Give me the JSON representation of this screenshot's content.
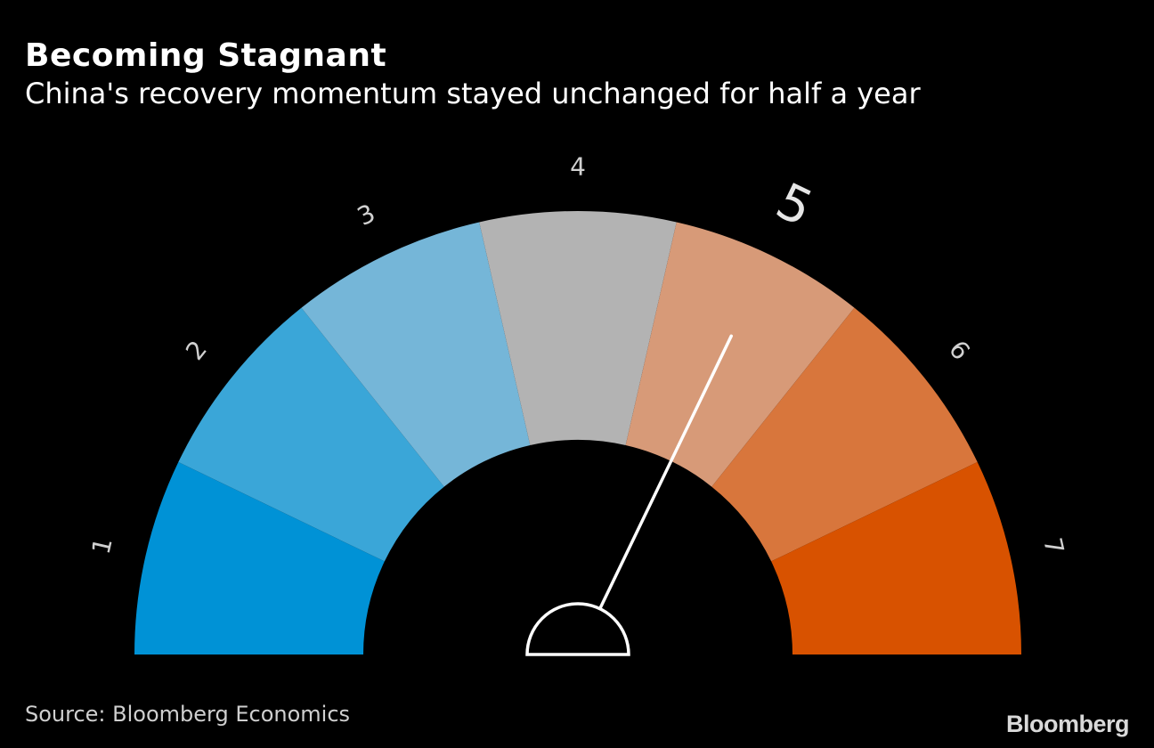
{
  "header": {
    "title": "Becoming Stagnant",
    "subtitle": "China's recovery momentum stayed unchanged for half a year"
  },
  "chart_data": {
    "type": "gauge",
    "segments": [
      {
        "label": "1",
        "color": "#0092d6"
      },
      {
        "label": "2",
        "color": "#3aa6d8"
      },
      {
        "label": "3",
        "color": "#75b6d8"
      },
      {
        "label": "4",
        "color": "#b3b3b3"
      },
      {
        "label": "5",
        "color": "#d79a78"
      },
      {
        "label": "6",
        "color": "#d8763c"
      },
      {
        "label": "7",
        "color": "#d85200"
      }
    ],
    "value": 5,
    "highlighted_label": "5",
    "needle_color": "#ffffff"
  },
  "footer": {
    "source": "Source: Bloomberg Economics",
    "brand": "Bloomberg"
  }
}
